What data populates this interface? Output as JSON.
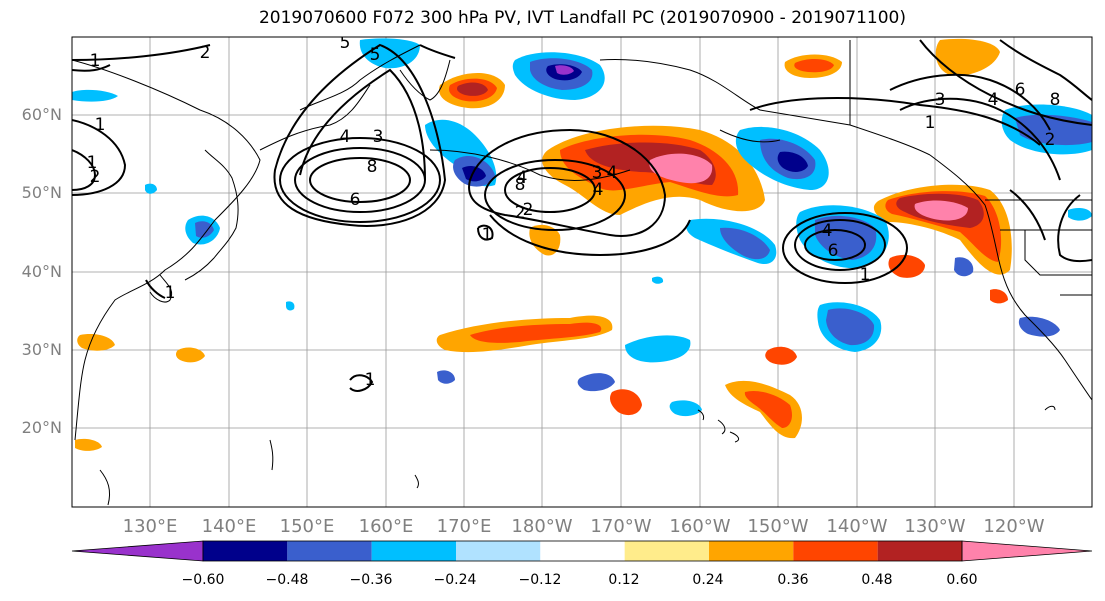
{
  "title": "2019070600 F072 300 hPa PV, IVT Landfall PC (2019070900 - 2019071100)",
  "map": {
    "lat_labels": [
      "60°N",
      "50°N",
      "40°N",
      "30°N",
      "20°N"
    ],
    "lon_labels": [
      "130°E",
      "140°E",
      "150°E",
      "160°E",
      "170°E",
      "180°W",
      "170°W",
      "160°W",
      "150°W",
      "140°W",
      "130°W",
      "120°W"
    ],
    "contour_labels": [
      "1",
      "2",
      "5",
      "1",
      "5",
      "4",
      "3",
      "8",
      "6",
      "1",
      "2",
      "4",
      "3",
      "8",
      "4",
      "4",
      "2",
      "6",
      "4",
      "2",
      "1",
      "3",
      "1",
      "6",
      "8",
      "2",
      "4",
      "1",
      "1",
      "1"
    ]
  },
  "colorbar": {
    "labels": [
      "−0.60",
      "−0.48",
      "−0.36",
      "−0.24",
      "−0.12",
      "0.12",
      "0.24",
      "0.36",
      "0.48",
      "0.60"
    ],
    "colors": [
      "#9932cc",
      "#00008b",
      "#3a5fcd",
      "#00bfff",
      "#b0e2ff",
      "#ffffff",
      "#ffec8b",
      "#ffa500",
      "#ff4500",
      "#b22222",
      "#ff82ab"
    ]
  }
}
